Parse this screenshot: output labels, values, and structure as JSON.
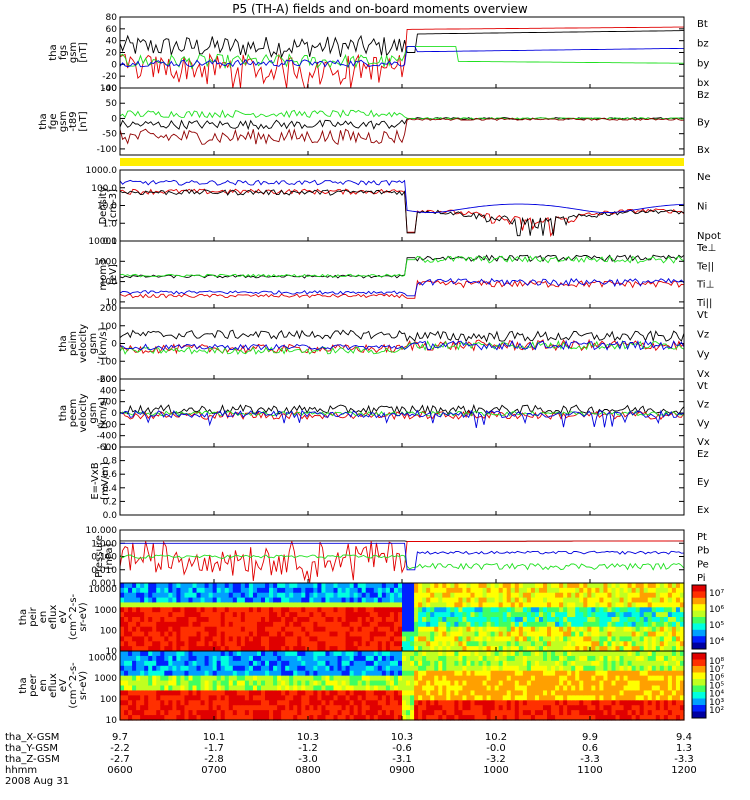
{
  "title": "P5 (TH-A) fields and on-board moments overview",
  "colors": {
    "black": "#000000",
    "red": "#e00000",
    "green": "#20e020",
    "blue": "#0000dd",
    "darkred": "#900000",
    "yellow": "#ffee00"
  },
  "chart_data": [
    {
      "type": "line",
      "ylabel": [
        "tha",
        "fgs",
        "gsm",
        "[nT]"
      ],
      "ylim": [
        -40,
        80
      ],
      "yticks": [
        "80",
        "60",
        "40",
        "20",
        "0",
        "-20",
        "-40"
      ],
      "series": [
        {
          "name": "Bt",
          "color": "black"
        },
        {
          "name": "bz",
          "color": "red"
        },
        {
          "name": "by",
          "color": "green"
        },
        {
          "name": "bx",
          "color": "blue"
        }
      ]
    },
    {
      "type": "line",
      "ylabel": [
        "tha",
        "fge",
        "gsm",
        "-t89",
        "[nT]"
      ],
      "ylim": [
        -120,
        100
      ],
      "yticks": [
        "100",
        "50",
        "0",
        "-50",
        "-100"
      ],
      "series": [
        {
          "name": "Bz",
          "color": "black"
        },
        {
          "name": "By",
          "color": "green"
        },
        {
          "name": "Bx",
          "color": "darkred"
        }
      ]
    },
    {
      "type": "line",
      "ylabel": [
        "Density",
        "[cm-3]"
      ],
      "ylim": [
        0.1,
        1000
      ],
      "log": true,
      "yticks": [
        "1000.0",
        "100.0",
        "10.0",
        "1.0",
        "0.1"
      ],
      "series": [
        {
          "name": "Ne",
          "color": "red"
        },
        {
          "name": "Ni",
          "color": "black"
        },
        {
          "name": "Npot",
          "color": "blue"
        }
      ]
    },
    {
      "type": "line",
      "ylabel": [
        "mom3",
        "[eV]"
      ],
      "ylim": [
        5,
        10000
      ],
      "log": true,
      "yticks": [
        "10000",
        "1000",
        "100",
        "10"
      ],
      "series": [
        {
          "name": "Te⊥",
          "color": "red"
        },
        {
          "name": "Te||",
          "color": "black"
        },
        {
          "name": "Ti⊥",
          "color": "blue"
        },
        {
          "name": "Ti||",
          "color": "green"
        }
      ]
    },
    {
      "type": "line",
      "ylabel": [
        "tha",
        "peim",
        "velocity",
        "gsm",
        "[km/s]"
      ],
      "ylim": [
        -200,
        200
      ],
      "yticks": [
        "200",
        "100",
        "0",
        "-100",
        "-200"
      ],
      "series": [
        {
          "name": "Vt",
          "color": "black"
        },
        {
          "name": "Vz",
          "color": "red"
        },
        {
          "name": "Vy",
          "color": "green"
        },
        {
          "name": "Vx",
          "color": "blue"
        }
      ]
    },
    {
      "type": "line",
      "ylabel": [
        "tha",
        "peem",
        "velocity",
        "gsm",
        "[km/s]"
      ],
      "ylim": [
        -600,
        600
      ],
      "yticks": [
        "600",
        "400",
        "200",
        "0",
        "-200",
        "-400",
        "-600"
      ],
      "series": [
        {
          "name": "Vt",
          "color": "black"
        },
        {
          "name": "Vz",
          "color": "red"
        },
        {
          "name": "Vy",
          "color": "green"
        },
        {
          "name": "Vx",
          "color": "blue"
        }
      ]
    },
    {
      "type": "line",
      "ylabel": [
        "E=-VxB",
        "[mV/m]"
      ],
      "ylim": [
        0,
        1
      ],
      "yticks": [
        "1.0",
        "0.8",
        "0.6",
        "0.4",
        "0.2",
        "0.0"
      ],
      "series": [
        {
          "name": "Ez",
          "color": "red"
        },
        {
          "name": "Ey",
          "color": "green"
        },
        {
          "name": "Ex",
          "color": "blue"
        }
      ]
    },
    {
      "type": "line",
      "ylabel": [
        "Pressure",
        "[nPa]"
      ],
      "ylim": [
        0.001,
        10
      ],
      "log": true,
      "yticks": [
        "10.000",
        "1.000",
        "0.100",
        "0.010",
        "0.001"
      ],
      "series": [
        {
          "name": "Pt",
          "color": "black"
        },
        {
          "name": "Pb",
          "color": "red"
        },
        {
          "name": "Pe",
          "color": "green"
        },
        {
          "name": "Pi",
          "color": "blue"
        }
      ]
    },
    {
      "type": "heatmap",
      "ylabel": [
        "tha",
        "peir",
        "en",
        "eflux",
        "eV",
        "(cm^2-s-",
        "sr-eV)"
      ],
      "ylim": [
        10,
        20000
      ],
      "log": true,
      "yticks": [
        "10000",
        "1000",
        "100",
        "10"
      ],
      "colorbar_ticks": [
        "10⁷",
        "10⁶",
        "10⁵",
        "10⁴"
      ]
    },
    {
      "type": "heatmap",
      "ylabel": [
        "tha",
        "peer",
        "en",
        "eflux",
        "eV",
        "(cm^2-s-",
        "sr-eV)"
      ],
      "ylim": [
        10,
        20000
      ],
      "log": true,
      "yticks": [
        "10000",
        "1000",
        "100",
        "10"
      ],
      "colorbar_ticks": [
        "10⁸",
        "10⁷",
        "10⁶",
        "10⁵",
        "10⁴",
        "10³",
        "10²"
      ]
    }
  ],
  "xaxis": {
    "rows": [
      {
        "label": "tha_X-GSM",
        "values": [
          "9.7",
          "10.1",
          "10.3",
          "10.3",
          "10.2",
          "9.9",
          "9.4"
        ]
      },
      {
        "label": "tha_Y-GSM",
        "values": [
          "-2.2",
          "-1.7",
          "-1.2",
          "-0.6",
          "-0.0",
          "0.6",
          "1.3"
        ]
      },
      {
        "label": "tha_Z-GSM",
        "values": [
          "-2.7",
          "-2.8",
          "-3.0",
          "-3.1",
          "-3.2",
          "-3.3",
          "-3.3"
        ]
      },
      {
        "label": "hhmm",
        "values": [
          "0600",
          "0700",
          "0800",
          "0900",
          "1000",
          "1100",
          "1200"
        ]
      }
    ],
    "date": "2008 Aug 31"
  }
}
